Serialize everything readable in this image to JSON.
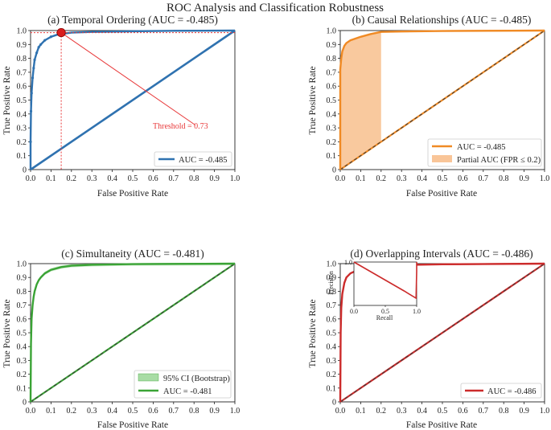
{
  "suptitle": "ROC Analysis and Classification Robustness",
  "colors": {
    "blue": "#2f72b0",
    "orange": "#f08a24",
    "orange_fill": "#f7b77e",
    "green": "#3aa335",
    "green_fill": "#a8dca5",
    "red": "#cc2b2b",
    "diag_dark": "#3d3d3d",
    "annot_red": "#e8393a"
  },
  "chart_data": [
    {
      "type": "line",
      "title": "(a) Temporal Ordering (AUC = -0.485)",
      "xlabel": "False Positive Rate",
      "ylabel": "True Positive Rate",
      "xlim": [
        0,
        1
      ],
      "ylim": [
        0,
        1
      ],
      "xticks": [
        "0.0",
        "0.1",
        "0.2",
        "0.3",
        "0.4",
        "0.5",
        "0.6",
        "0.7",
        "0.8",
        "0.9",
        "1.0"
      ],
      "yticks": [
        "0",
        "0.1",
        "0.2",
        "0.3",
        "0.4",
        "0.5",
        "0.6",
        "0.7",
        "0.8",
        "0.9",
        "1.0"
      ],
      "series": [
        {
          "name": "AUC = -0.485",
          "color": "#2f72b0",
          "x": [
            0,
            0.0,
            0.002,
            0.005,
            0.01,
            0.015,
            0.02,
            0.03,
            0.04,
            0.05,
            0.07,
            0.1,
            0.13,
            0.15,
            0.2,
            0.3,
            0.5,
            0.7,
            1.0
          ],
          "y": [
            0,
            0.2,
            0.42,
            0.55,
            0.66,
            0.73,
            0.79,
            0.84,
            0.88,
            0.9,
            0.93,
            0.955,
            0.97,
            0.975,
            0.985,
            0.99,
            0.995,
            0.998,
            1.0
          ]
        }
      ],
      "diagonal": {
        "color": "#2f72b0"
      },
      "threshold": {
        "label": "Threshold = 0.73",
        "x": 0.15,
        "y": 0.985,
        "text_x": 0.59,
        "text_y": 0.32
      },
      "legend": {
        "entries": [
          "AUC = -0.485"
        ],
        "loc": "lower right"
      }
    },
    {
      "type": "line",
      "title": "(b) Causal Relationships (AUC = -0.485)",
      "xlabel": "False Positive Rate",
      "ylabel": "True Positive Rate",
      "xlim": [
        0,
        1
      ],
      "ylim": [
        0,
        1
      ],
      "xticks": [
        "0.0",
        "0.1",
        "0.2",
        "0.3",
        "0.4",
        "0.5",
        "0.6",
        "0.7",
        "0.8",
        "0.9",
        "1.0"
      ],
      "yticks": [
        "0",
        "0.1",
        "0.2",
        "0.3",
        "0.4",
        "0.5",
        "0.6",
        "0.7",
        "0.8",
        "0.9",
        "1.0"
      ],
      "series": [
        {
          "name": "AUC = -0.485",
          "color": "#f08a24",
          "x": [
            0,
            0.0,
            0.005,
            0.01,
            0.02,
            0.03,
            0.05,
            0.07,
            0.1,
            0.15,
            0.2,
            0.3,
            0.5,
            1.0
          ],
          "y": [
            0,
            0.72,
            0.8,
            0.85,
            0.89,
            0.91,
            0.93,
            0.94,
            0.955,
            0.975,
            0.99,
            0.993,
            0.997,
            1.0
          ]
        }
      ],
      "partial_auc": {
        "name": "Partial AUC (FPR ≤ 0.2)",
        "fpr_max": 0.2
      },
      "legend": {
        "entries": [
          "AUC = -0.485",
          "Partial AUC (FPR ≤ 0.2)"
        ],
        "loc": "lower right"
      }
    },
    {
      "type": "line",
      "title": "(c) Simultaneity (AUC = -0.481)",
      "xlabel": "False Positive Rate",
      "ylabel": "True Positive Rate",
      "xlim": [
        0,
        1
      ],
      "ylim": [
        0,
        1
      ],
      "xticks": [
        "0.0",
        "0.1",
        "0.2",
        "0.3",
        "0.4",
        "0.5",
        "0.6",
        "0.7",
        "0.8",
        "0.9",
        "1.0"
      ],
      "yticks": [
        "0",
        "0.1",
        "0.2",
        "0.3",
        "0.4",
        "0.5",
        "0.6",
        "0.7",
        "0.8",
        "0.9",
        "1.0"
      ],
      "series": [
        {
          "name": "AUC = -0.481",
          "color": "#3aa335",
          "x": [
            0,
            0.002,
            0.005,
            0.01,
            0.015,
            0.02,
            0.03,
            0.04,
            0.05,
            0.07,
            0.1,
            0.15,
            0.2,
            0.3,
            0.5,
            1.0
          ],
          "y": [
            0,
            0.42,
            0.6,
            0.7,
            0.76,
            0.8,
            0.85,
            0.88,
            0.9,
            0.93,
            0.955,
            0.975,
            0.985,
            0.992,
            0.997,
            1.0
          ]
        }
      ],
      "ci_band": {
        "name": "95% CI (Bootstrap)",
        "halfwidth": 0.012
      },
      "legend": {
        "entries": [
          "95% CI (Bootstrap)",
          "AUC = -0.481"
        ],
        "loc": "lower right"
      }
    },
    {
      "type": "line",
      "title": "(d) Overlapping Intervals (AUC = -0.486)",
      "xlabel": "False Positive Rate",
      "ylabel": "True Positive Rate",
      "xlim": [
        0,
        1
      ],
      "ylim": [
        0,
        1
      ],
      "xticks": [
        "0.0",
        "0.1",
        "0.2",
        "0.3",
        "0.4",
        "0.5",
        "0.6",
        "0.7",
        "0.8",
        "0.9",
        "1.0"
      ],
      "yticks": [
        "0",
        "0.1",
        "0.2",
        "0.3",
        "0.4",
        "0.5",
        "0.6",
        "0.7",
        "0.8",
        "0.9",
        "1.0"
      ],
      "series": [
        {
          "name": "AUC = -0.486",
          "color": "#cc2b2b",
          "x": [
            0,
            0.002,
            0.005,
            0.01,
            0.02,
            0.03,
            0.05,
            0.08,
            0.1,
            0.15,
            0.2,
            0.3,
            0.5,
            1.0
          ],
          "y": [
            0,
            0.5,
            0.68,
            0.78,
            0.86,
            0.9,
            0.93,
            0.95,
            0.96,
            0.975,
            0.985,
            0.99,
            0.995,
            1.0
          ]
        }
      ],
      "inset": {
        "type": "line",
        "xlabel": "Recall",
        "ylabel": "Precision",
        "xticks": [
          "0.0",
          "0.5",
          "1.0"
        ],
        "yticks": [
          "1.0"
        ],
        "x": [
          0.0,
          0.2,
          0.4,
          0.6,
          0.8,
          0.99,
          1.0,
          1.0
        ],
        "y": [
          1.0,
          0.97,
          0.94,
          0.91,
          0.88,
          0.85,
          0.96,
          1.0
        ],
        "ylim": [
          0.82,
          1.0
        ]
      },
      "legend": {
        "entries": [
          "AUC = -0.486"
        ],
        "loc": "lower right"
      }
    }
  ]
}
